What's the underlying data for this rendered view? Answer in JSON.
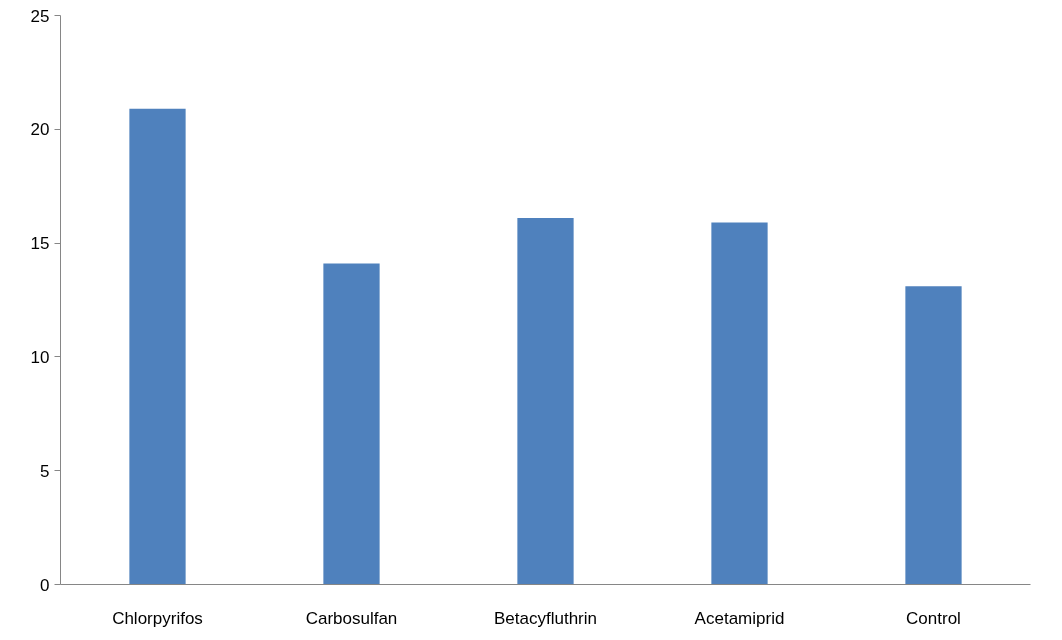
{
  "chart_data": {
    "type": "bar",
    "categories": [
      "Chlorpyrifos",
      "Carbosulfan",
      "Betacyfluthrin",
      "Acetamiprid",
      "Control"
    ],
    "values": [
      20.9,
      14.1,
      16.1,
      15.9,
      13.1
    ],
    "color": "#4f81bd",
    "ylim": [
      0,
      25
    ],
    "yticks": [
      0,
      5,
      10,
      15,
      20,
      25
    ],
    "grid": false
  }
}
